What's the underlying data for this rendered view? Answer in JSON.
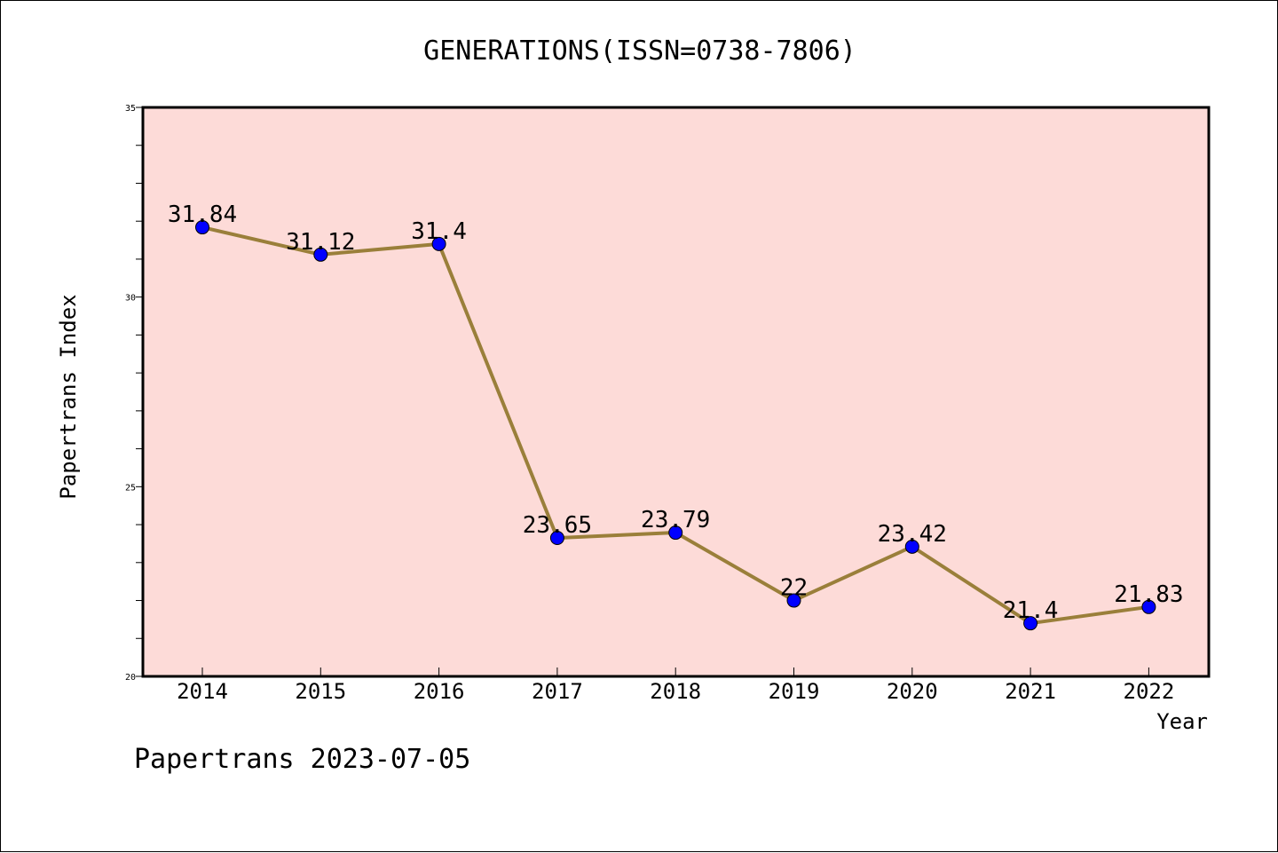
{
  "chart_data": {
    "type": "line",
    "title": "GENERATIONS(ISSN=0738-7806)",
    "xlabel": "Year",
    "ylabel": "Papertrans Index",
    "categories": [
      "2014",
      "2015",
      "2016",
      "2017",
      "2018",
      "2019",
      "2020",
      "2021",
      "2022"
    ],
    "values": [
      31.84,
      31.12,
      31.4,
      23.65,
      23.79,
      22,
      23.42,
      21.4,
      21.83
    ],
    "data_labels": [
      "31.84",
      "31.12",
      "31.4",
      "23.65",
      "23.79",
      "22",
      "23.42",
      "21.4",
      "21.83"
    ],
    "ylim": [
      20,
      35
    ],
    "yticks": [
      20,
      25,
      30,
      35
    ],
    "grid": false,
    "line_color": "#9a7f3a",
    "marker_color": "#0000ff",
    "plot_background": "#fddbd8"
  },
  "footer": "Papertrans 2023-07-05"
}
